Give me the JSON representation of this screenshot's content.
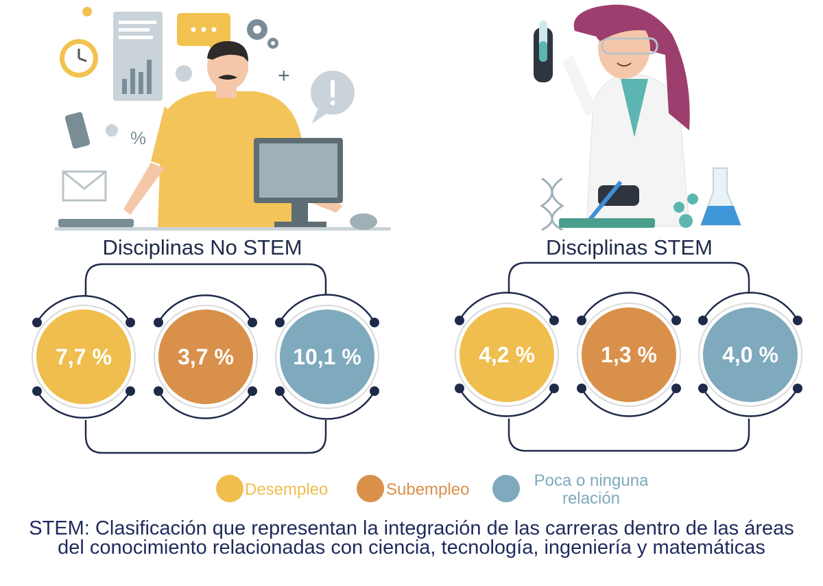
{
  "groups": [
    {
      "title": "Disciplinas No STEM",
      "stats": [
        "7,7 %",
        "3,7 %",
        "10,1 %"
      ]
    },
    {
      "title": "Disciplinas STEM",
      "stats": [
        "4,2 %",
        "1,3 %",
        "4,0 %"
      ]
    }
  ],
  "legend": [
    {
      "label": "Desempleo",
      "color": "#efbe4e"
    },
    {
      "label": "Subempleo",
      "color": "#d9904a"
    },
    {
      "label": "Poca o ninguna relación",
      "color": "#7fa9bd"
    }
  ],
  "footnote": "STEM: Clasificación que representan la integración de las carreras dentro de las áreas del conocimiento relacionadas con ciencia, tecnología, ingeniería y matemáticas",
  "colors": {
    "dark": "#1f2a4a",
    "yellow": "#efbe4e",
    "orange": "#d9904a",
    "blue": "#7fa9bd"
  }
}
